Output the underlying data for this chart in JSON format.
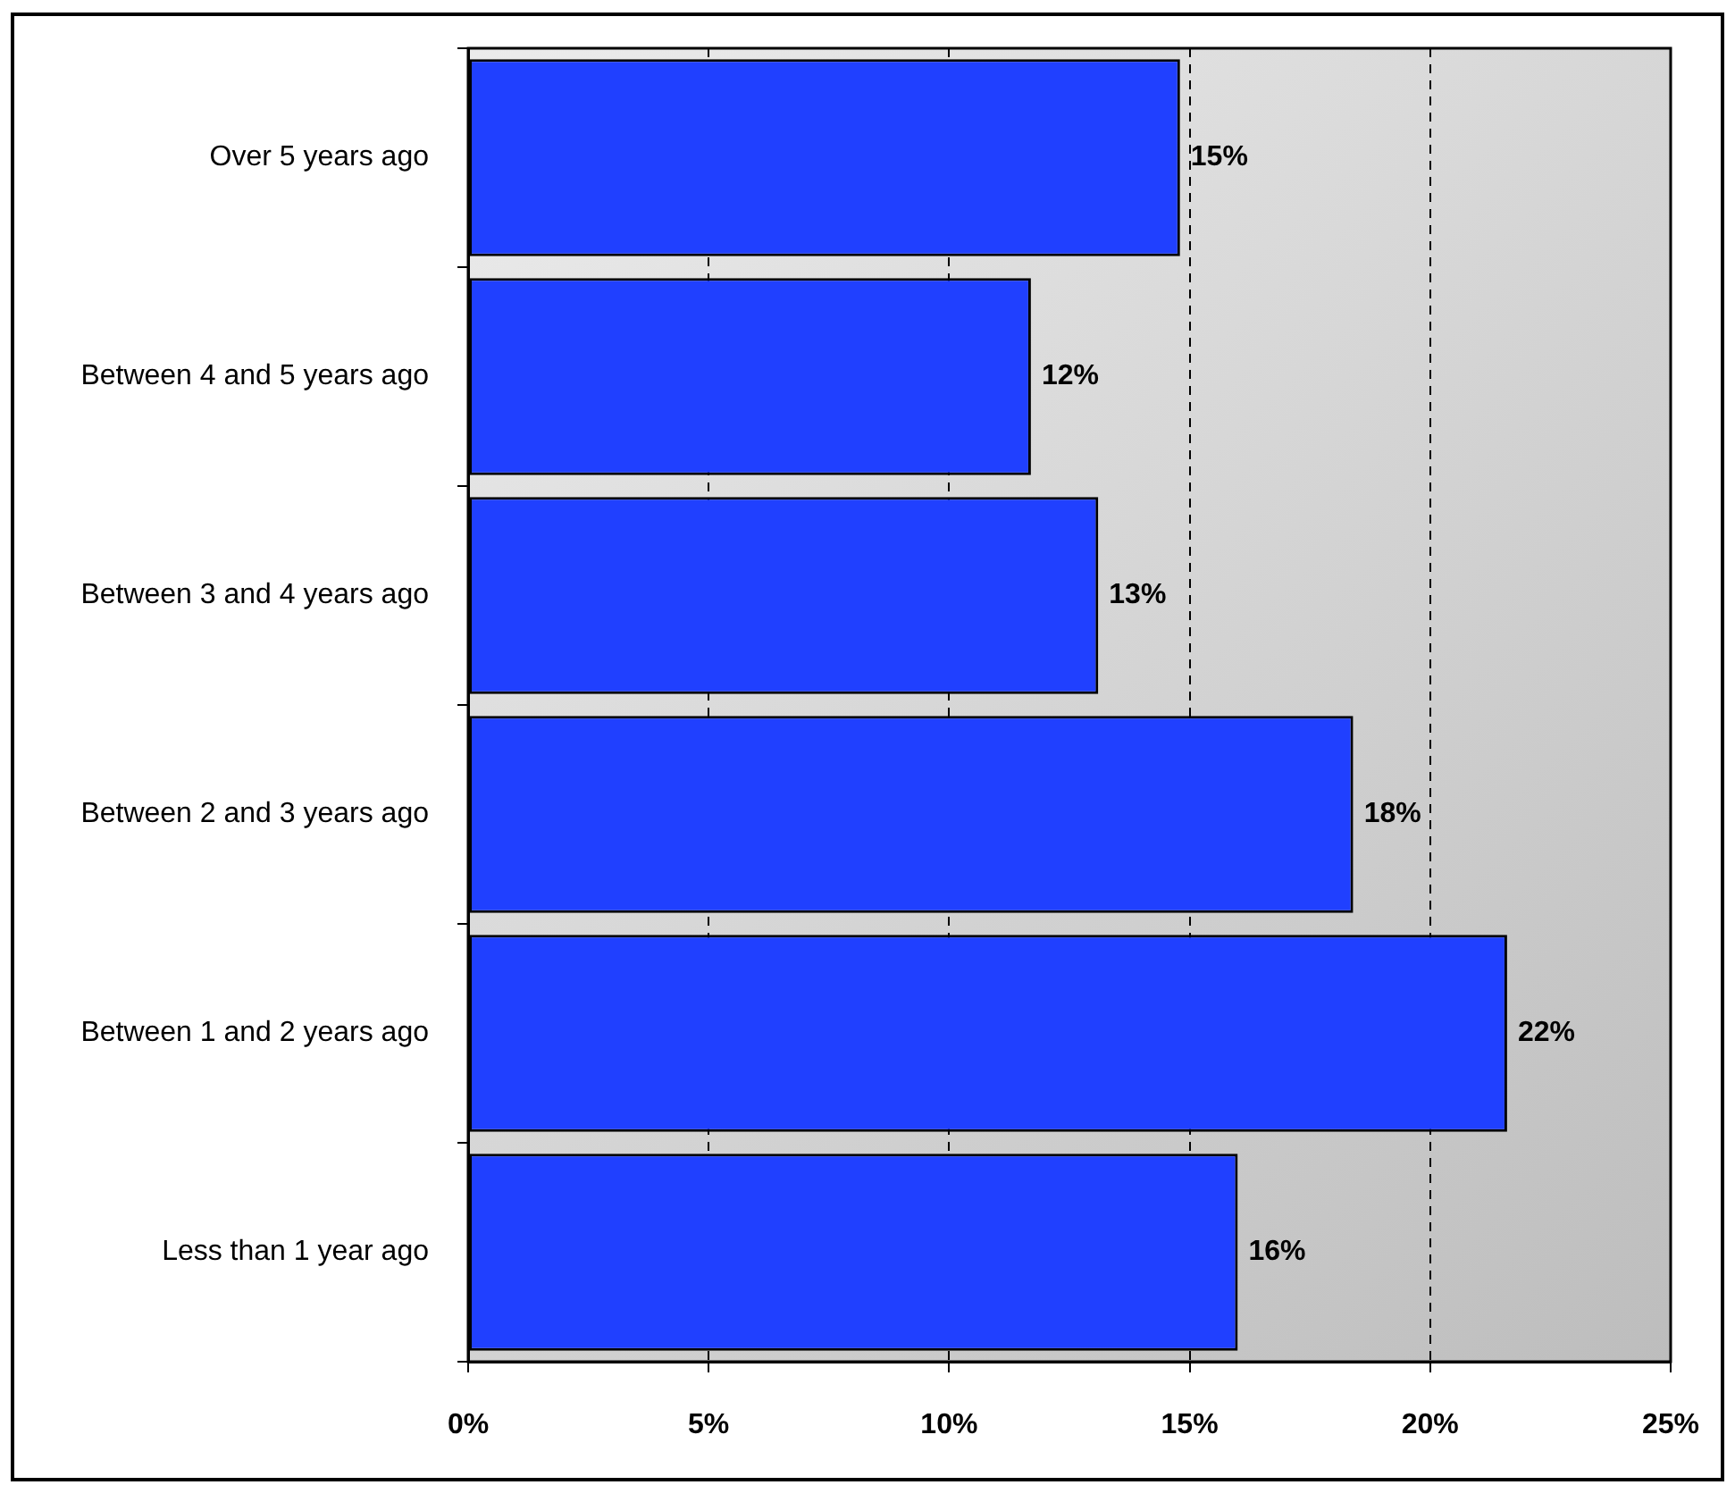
{
  "chart_data": {
    "type": "bar",
    "orientation": "horizontal",
    "categories": [
      "Over 5 years ago",
      "Between 4 and 5 years ago",
      "Between 3 and 4 years ago",
      "Between 2 and 3 years ago",
      "Between 1 and 2 years ago",
      "Less than 1 year ago"
    ],
    "values": [
      14.8,
      11.7,
      13.1,
      18.4,
      21.6,
      16.0
    ],
    "value_labels": [
      "15%",
      "12%",
      "13%",
      "18%",
      "22%",
      "16%"
    ],
    "color": "#2040ff",
    "xlim": [
      0,
      25
    ],
    "xticks": [
      {
        "value": 0,
        "label": "0%"
      },
      {
        "value": 5,
        "label": "5%"
      },
      {
        "value": 10,
        "label": "10%"
      },
      {
        "value": 15,
        "label": "15%"
      },
      {
        "value": 20,
        "label": "20%"
      },
      {
        "value": 25,
        "label": "25%"
      }
    ],
    "grid": "x"
  }
}
